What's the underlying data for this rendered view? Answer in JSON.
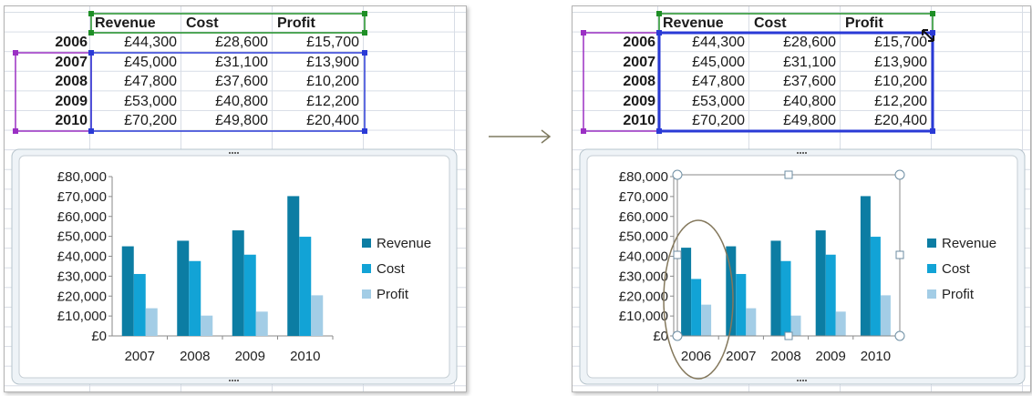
{
  "table": {
    "headers": [
      "Revenue",
      "Cost",
      "Profit"
    ],
    "rows": [
      {
        "year": "2006",
        "revenue": "£44,300",
        "cost": "£28,600",
        "profit": "£15,700"
      },
      {
        "year": "2007",
        "revenue": "£45,000",
        "cost": "£31,100",
        "profit": "£13,900"
      },
      {
        "year": "2008",
        "revenue": "£47,800",
        "cost": "£37,600",
        "profit": "£10,200"
      },
      {
        "year": "2009",
        "revenue": "£53,000",
        "cost": "£40,800",
        "profit": "£12,200"
      },
      {
        "year": "2010",
        "revenue": "£70,200",
        "cost": "£49,800",
        "profit": "£20,400"
      }
    ]
  },
  "colors": {
    "revenue": "#0c7da3",
    "cost": "#12a3d6",
    "profit": "#a3cde6",
    "header_selection": "#1e8f26",
    "data_selection": "#2a3ad6",
    "row_selection": "#9b30c4"
  },
  "chart_data": [
    {
      "type": "bar",
      "categories": [
        "2007",
        "2008",
        "2009",
        "2010"
      ],
      "series": [
        {
          "name": "Revenue",
          "values": [
            45000,
            47800,
            53000,
            70200
          ]
        },
        {
          "name": "Cost",
          "values": [
            31100,
            37600,
            40800,
            49800
          ]
        },
        {
          "name": "Profit",
          "values": [
            13900,
            10200,
            12200,
            20400
          ]
        }
      ],
      "ylim": [
        0,
        80000
      ],
      "yticks": [
        "£0",
        "£10,000",
        "£20,000",
        "£30,000",
        "£40,000",
        "£50,000",
        "£60,000",
        "£70,000",
        "£80,000"
      ],
      "legend": "right",
      "grid": false
    },
    {
      "type": "bar",
      "categories": [
        "2006",
        "2007",
        "2008",
        "2009",
        "2010"
      ],
      "series": [
        {
          "name": "Revenue",
          "values": [
            44300,
            45000,
            47800,
            53000,
            70200
          ]
        },
        {
          "name": "Cost",
          "values": [
            28600,
            31100,
            37600,
            40800,
            49800
          ]
        },
        {
          "name": "Profit",
          "values": [
            15700,
            13900,
            10200,
            12200,
            20400
          ]
        }
      ],
      "ylim": [
        0,
        80000
      ],
      "yticks": [
        "£0",
        "£10,000",
        "£20,000",
        "£30,000",
        "£40,000",
        "£50,000",
        "£60,000",
        "£70,000",
        "£80,000"
      ],
      "legend": "right",
      "grid": false
    }
  ]
}
